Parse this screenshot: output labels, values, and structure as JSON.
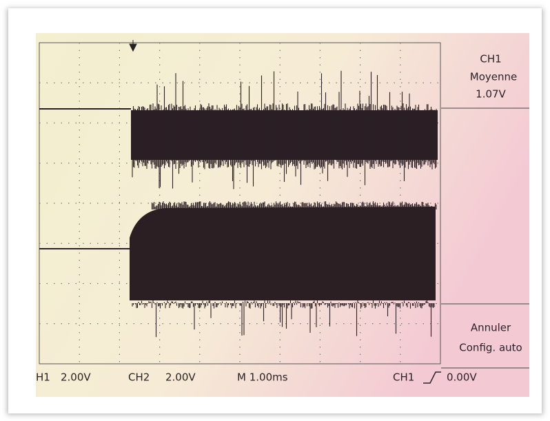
{
  "menu": {
    "channel": "CH1",
    "measure": "Moyenne",
    "value": "1.07V",
    "action_1": "Annuler",
    "action_2": "Config. auto"
  },
  "status_bar": {
    "ch1_label": "H1",
    "ch1_scale": "2.00V",
    "ch2_label": "CH2",
    "ch2_scale": "2.00V",
    "timebase": "M 1.00ms",
    "trigger_source": "CH1",
    "trigger_level": "0.00V"
  }
}
